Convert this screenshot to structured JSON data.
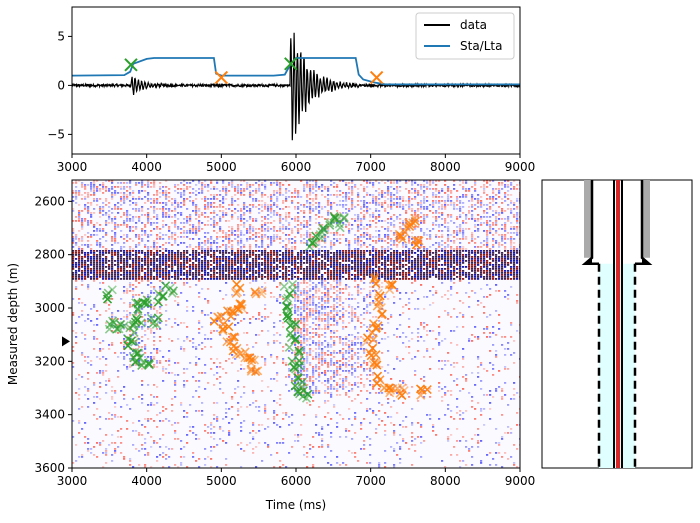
{
  "chart_data": [
    {
      "type": "line",
      "panel": "top",
      "xlim": [
        3000,
        9000
      ],
      "ylim": [
        -7,
        8
      ],
      "xticks": [
        3000,
        4000,
        5000,
        6000,
        7000,
        8000,
        9000
      ],
      "yticks": [
        -5,
        0,
        5
      ],
      "legend": {
        "placement": "top-right",
        "entries": [
          "data",
          "Sta/Lta"
        ]
      },
      "series": [
        {
          "name": "data",
          "color": "#000000",
          "events": [
            {
              "t": 3790,
              "amp": 1.2,
              "decay": 160
            },
            {
              "t": 5920,
              "amp": 7.2,
              "decay": 220
            }
          ],
          "noise": 0.12
        },
        {
          "name": "Sta/Lta",
          "color": "#1f77b4",
          "x": [
            3000,
            3700,
            3780,
            3820,
            4000,
            4100,
            4900,
            4930,
            5000,
            5700,
            5850,
            5930,
            6000,
            6800,
            6840,
            6900,
            7050,
            7200,
            9000
          ],
          "y": [
            1.0,
            1.05,
            1.4,
            2.2,
            2.7,
            2.8,
            2.8,
            1.2,
            1.0,
            1.0,
            1.1,
            2.2,
            2.8,
            2.8,
            1.1,
            0.6,
            0.3,
            0.1,
            0.1
          ]
        }
      ],
      "picks": [
        {
          "kind": "on",
          "x": 3790,
          "y": 2.1,
          "color": "#2ca02c"
        },
        {
          "kind": "off",
          "x": 5000,
          "y": 0.8,
          "color": "#ff7f0e"
        },
        {
          "kind": "on",
          "x": 5930,
          "y": 2.2,
          "color": "#2ca02c"
        },
        {
          "kind": "off",
          "x": 7080,
          "y": 0.8,
          "color": "#ff7f0e"
        }
      ]
    },
    {
      "type": "heatmap",
      "panel": "bottom",
      "xlabel": "Time (ms)",
      "ylabel": "Measured depth (m)",
      "xlim": [
        3000,
        9000
      ],
      "ylim": [
        3600,
        2520
      ],
      "xticks": [
        3000,
        4000,
        5000,
        6000,
        7000,
        8000,
        9000
      ],
      "yticks": [
        2600,
        2800,
        3000,
        3200,
        3400,
        3600
      ],
      "colormap": "seismic (blue-white-red)",
      "dense_band_depth": [
        2780,
        2890
      ],
      "marker_depth": 3125,
      "picks": [
        {
          "color": "#2ca02c",
          "points": [
            [
              3550,
              3060
            ],
            [
              3650,
              3060
            ],
            [
              3780,
              3080
            ],
            [
              3800,
              3130
            ],
            [
              3830,
              3170
            ],
            [
              3900,
              3200
            ],
            [
              4000,
              3210
            ],
            [
              3850,
              3000
            ],
            [
              4000,
              2980
            ],
            [
              4200,
              2960
            ],
            [
              3900,
              3040
            ],
            [
              4100,
              3050
            ],
            [
              4300,
              2930
            ],
            [
              3500,
              2950
            ]
          ]
        },
        {
          "color": "#ff7f0e",
          "points": [
            [
              4950,
              3050
            ],
            [
              5050,
              3080
            ],
            [
              5120,
              3120
            ],
            [
              5200,
              3160
            ],
            [
              5300,
              3180
            ],
            [
              5400,
              3190
            ],
            [
              5100,
              3020
            ],
            [
              5200,
              3000
            ],
            [
              5300,
              2990
            ],
            [
              5450,
              3220
            ],
            [
              5200,
              2930
            ],
            [
              5500,
              2930
            ]
          ]
        },
        {
          "color": "#2ca02c",
          "points": [
            [
              5900,
              2930
            ],
            [
              5920,
              2980
            ],
            [
              5930,
              3030
            ],
            [
              5950,
              3080
            ],
            [
              5970,
              3130
            ],
            [
              5990,
              3180
            ],
            [
              6010,
              3230
            ],
            [
              6030,
              3280
            ],
            [
              6050,
              3310
            ],
            [
              6300,
              2730
            ],
            [
              6400,
              2700
            ],
            [
              6500,
              2670
            ],
            [
              6600,
              2680
            ],
            [
              6200,
              2760
            ],
            [
              6100,
              3320
            ]
          ]
        },
        {
          "color": "#ff7f0e",
          "points": [
            [
              7100,
              3010
            ],
            [
              7050,
              3060
            ],
            [
              7000,
              3110
            ],
            [
              7030,
              3170
            ],
            [
              7060,
              3220
            ],
            [
              7100,
              3270
            ],
            [
              7200,
              3300
            ],
            [
              7300,
              3300
            ],
            [
              7400,
              3310
            ],
            [
              7150,
              2960
            ],
            [
              7250,
              2920
            ],
            [
              7100,
              2900
            ],
            [
              7500,
              2700
            ],
            [
              7400,
              2740
            ],
            [
              7550,
              2680
            ],
            [
              7600,
              2750
            ],
            [
              7700,
              3310
            ]
          ]
        }
      ]
    },
    {
      "type": "well-schematic",
      "panel": "right",
      "casing_shoe_depth_fraction": 0.27,
      "tubing_color": "#d62728",
      "annulus_color": "#e0ffff"
    }
  ]
}
